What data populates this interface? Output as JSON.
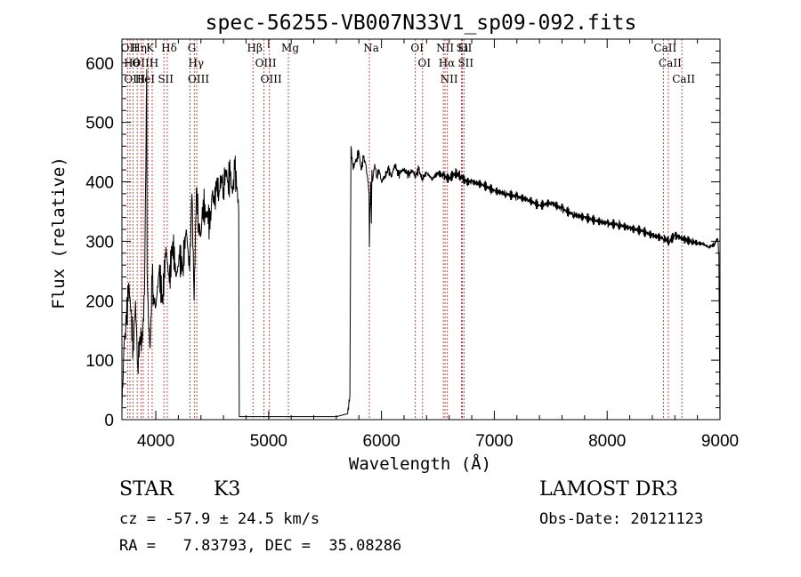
{
  "chart_data": {
    "type": "line",
    "title": "spec-56255-VB007N33V1_sp09-092.fits",
    "xlabel": "Wavelength (Å)",
    "ylabel": "Flux (relative)",
    "xlim": [
      3700,
      9000
    ],
    "ylim": [
      0,
      640
    ],
    "x_ticks": [
      4000,
      5000,
      6000,
      7000,
      8000,
      9000
    ],
    "x_tick_labels": [
      "4000",
      "5000",
      "6000",
      "7000",
      "8000",
      "9000"
    ],
    "y_ticks": [
      0,
      100,
      200,
      300,
      400,
      500,
      600
    ],
    "y_tick_labels": [
      "0",
      "100",
      "200",
      "300",
      "400",
      "500",
      "600"
    ],
    "series": [
      {
        "name": "spectrum",
        "color": "#000000",
        "x": [
          3700,
          3720,
          3740,
          3760,
          3780,
          3800,
          3820,
          3840,
          3860,
          3880,
          3900,
          3920,
          3923,
          3935,
          3950,
          3968,
          3980,
          4000,
          4030,
          4060,
          4090,
          4120,
          4150,
          4180,
          4210,
          4240,
          4270,
          4300,
          4320,
          4340,
          4360,
          4380,
          4400,
          4420,
          4440,
          4460,
          4480,
          4500,
          4520,
          4540,
          4560,
          4580,
          4600,
          4620,
          4640,
          4660,
          4680,
          4700,
          4720,
          4735,
          4740,
          4760,
          4800,
          5000,
          5200,
          5400,
          5600,
          5700,
          5720,
          5730,
          5740,
          5750,
          5760,
          5780,
          5800,
          5820,
          5840,
          5860,
          5880,
          5890,
          5893,
          5897,
          5905,
          5910,
          5915,
          5920,
          5940,
          5960,
          5980,
          6000,
          6030,
          6060,
          6090,
          6120,
          6150,
          6180,
          6210,
          6240,
          6270,
          6300,
          6330,
          6360,
          6400,
          6450,
          6500,
          6550,
          6600,
          6650,
          6700,
          6750,
          6800,
          6900,
          7000,
          7100,
          7200,
          7300,
          7400,
          7500,
          7600,
          7700,
          7800,
          7900,
          8000,
          8100,
          8200,
          8300,
          8400,
          8500,
          8550,
          8600,
          8700,
          8750,
          8800,
          8850,
          8900,
          8950,
          8980,
          8990,
          9000
        ],
        "values": [
          15,
          130,
          160,
          230,
          180,
          120,
          200,
          90,
          140,
          130,
          210,
          590,
          250,
          170,
          120,
          240,
          210,
          190,
          250,
          200,
          290,
          230,
          300,
          240,
          270,
          260,
          320,
          250,
          380,
          200,
          390,
          330,
          310,
          370,
          340,
          350,
          320,
          380,
          360,
          400,
          380,
          410,
          390,
          420,
          400,
          410,
          380,
          420,
          390,
          350,
          5,
          5,
          5,
          5,
          5,
          5,
          5,
          10,
          40,
          460,
          440,
          420,
          430,
          440,
          450,
          420,
          440,
          430,
          400,
          380,
          290,
          350,
          400,
          330,
          420,
          400,
          430,
          410,
          420,
          400,
          410,
          420,
          410,
          430,
          410,
          420,
          420,
          410,
          420,
          410,
          420,
          405,
          415,
          405,
          415,
          410,
          405,
          415,
          410,
          400,
          400,
          395,
          385,
          380,
          375,
          370,
          360,
          365,
          355,
          345,
          340,
          335,
          330,
          328,
          322,
          318,
          310,
          305,
          300,
          310,
          302,
          300,
          297,
          295,
          290,
          295,
          305,
          280,
          0
        ]
      }
    ],
    "line_markers": [
      {
        "wavelength": 3750,
        "label": "OII"
      },
      {
        "wavelength": 3771,
        "label": "Hθ"
      },
      {
        "wavelength": 3798,
        "label": "OIII"
      },
      {
        "wavelength": 3835,
        "label": "Hη"
      },
      {
        "wavelength": 3869,
        "label": "OIII"
      },
      {
        "wavelength": 3889,
        "label": "HeI"
      },
      {
        "wavelength": 3934,
        "label": "K"
      },
      {
        "wavelength": 3968,
        "label": "H"
      },
      {
        "wavelength": 4072,
        "label": "SII"
      },
      {
        "wavelength": 4102,
        "label": "Hδ"
      },
      {
        "wavelength": 4304,
        "label": "G"
      },
      {
        "wavelength": 4341,
        "label": "Hγ"
      },
      {
        "wavelength": 4363,
        "label": "OIII"
      },
      {
        "wavelength": 4861,
        "label": "Hβ"
      },
      {
        "wavelength": 4959,
        "label": "OIII"
      },
      {
        "wavelength": 5007,
        "label": "OIII"
      },
      {
        "wavelength": 5175,
        "label": "Mg"
      },
      {
        "wavelength": 5893,
        "label": "Na"
      },
      {
        "wavelength": 6300,
        "label": "OI"
      },
      {
        "wavelength": 6364,
        "label": "OI"
      },
      {
        "wavelength": 6548,
        "label": "NII"
      },
      {
        "wavelength": 6563,
        "label": "Hα"
      },
      {
        "wavelength": 6584,
        "label": "NII"
      },
      {
        "wavelength": 6708,
        "label": "Li"
      },
      {
        "wavelength": 6717,
        "label": "SII"
      },
      {
        "wavelength": 6731,
        "label": "SII"
      },
      {
        "wavelength": 8498,
        "label": "CaII"
      },
      {
        "wavelength": 8542,
        "label": "CaII"
      },
      {
        "wavelength": 8662,
        "label": "CaII"
      }
    ]
  },
  "info": {
    "object_class": "STAR",
    "subclass": "K3",
    "survey": "LAMOST DR3",
    "redshift_line": "cz = -57.9 ± 24.5 km/s",
    "obs_date_line": "Obs-Date: 20121123",
    "coords_line": "RA =   7.83793, DEC =  35.08286"
  },
  "colors": {
    "spectrum": "#000000",
    "marker_line": "#b22222",
    "axes": "#000000",
    "background": "#ffffff"
  }
}
